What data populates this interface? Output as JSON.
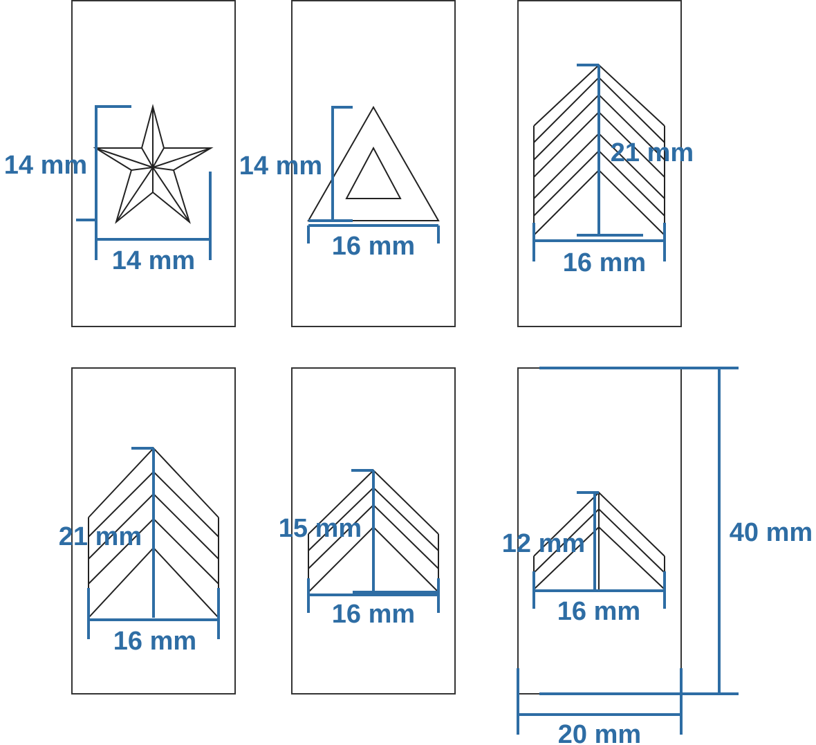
{
  "colors": {
    "dimension": "#2e6da4",
    "outline": "#222222",
    "background": "#ffffff"
  },
  "insignia": [
    {
      "name": "star",
      "height_label": "14 mm",
      "width_label": "14 mm"
    },
    {
      "name": "triangle",
      "height_label": "14 mm",
      "width_label": "16 mm"
    },
    {
      "name": "chevrons-6",
      "height_label": "21 mm",
      "width_label": "16 mm"
    },
    {
      "name": "chevrons-5",
      "height_label": "21 mm",
      "width_label": "16 mm"
    },
    {
      "name": "chevrons-4",
      "height_label": "15 mm",
      "width_label": "16 mm"
    },
    {
      "name": "chevrons-3",
      "height_label": "12 mm",
      "width_label": "16 mm"
    }
  ],
  "strap": {
    "height_label": "40 mm",
    "width_label": "20 mm"
  }
}
